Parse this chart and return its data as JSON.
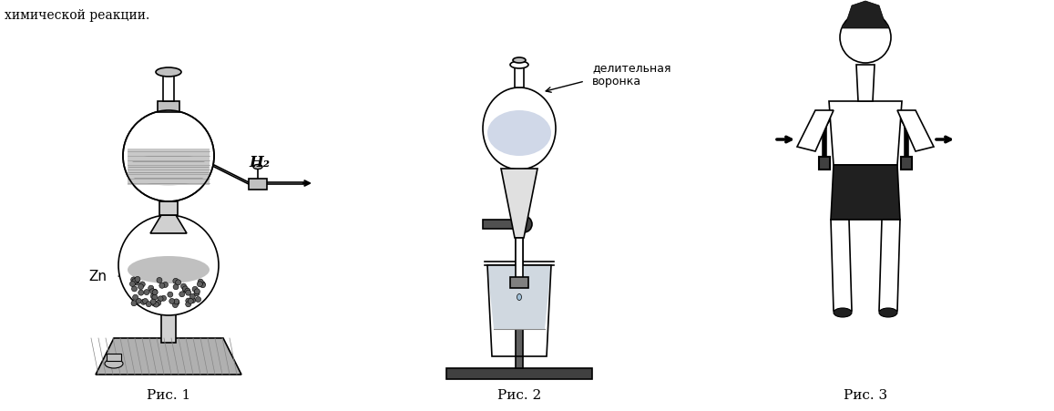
{
  "title_top": "химической реакции.",
  "label1": "Рис. 1",
  "label2": "Рис. 2",
  "label3": "Рис. 3",
  "label_zn": "Zn",
  "label_h2": "H₂",
  "label_voronka": "делительная\nворонка",
  "bg_color": "#ffffff",
  "line_color": "#000000",
  "gray_light": "#c8c8c8",
  "gray_dark": "#808080",
  "gray_fill": "#a0a0a0",
  "hatch_color": "#888888"
}
